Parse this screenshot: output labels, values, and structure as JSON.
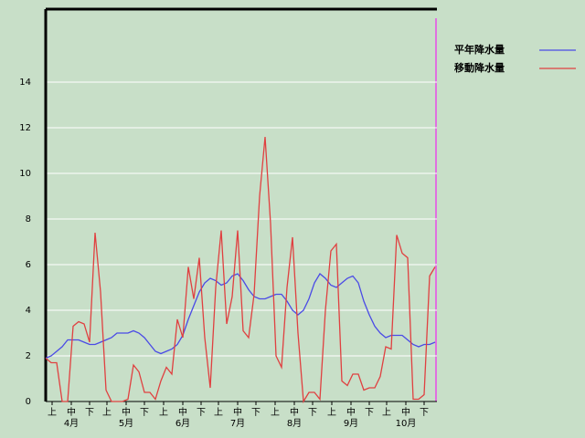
{
  "chart_data": {
    "type": "line",
    "x": [
      0,
      3,
      6,
      9,
      12,
      15,
      18,
      21,
      24,
      27,
      30,
      33,
      36,
      39,
      42,
      45,
      48,
      51,
      54,
      57,
      60,
      63,
      66,
      69,
      72,
      75,
      78,
      81,
      84,
      87,
      90,
      93,
      96,
      99,
      102,
      105,
      108,
      111,
      114,
      117,
      120,
      123,
      126,
      129,
      132,
      135,
      138,
      141,
      144,
      147,
      150,
      153,
      156,
      159,
      162,
      165,
      168,
      171,
      174,
      177,
      180,
      183,
      186,
      189,
      192,
      195,
      198,
      201,
      204,
      207,
      210,
      213
    ],
    "series": [
      {
        "name": "平年降水量",
        "color": "#4a4ae6",
        "values": [
          1.9,
          2.0,
          2.2,
          2.4,
          2.7,
          2.7,
          2.7,
          2.6,
          2.5,
          2.5,
          2.6,
          2.7,
          2.8,
          3.0,
          3.0,
          3.0,
          3.1,
          3.0,
          2.8,
          2.5,
          2.2,
          2.1,
          2.2,
          2.3,
          2.5,
          2.9,
          3.6,
          4.2,
          4.8,
          5.2,
          5.4,
          5.3,
          5.1,
          5.2,
          5.5,
          5.6,
          5.3,
          4.9,
          4.6,
          4.5,
          4.5,
          4.6,
          4.7,
          4.7,
          4.4,
          4.0,
          3.8,
          4.0,
          4.5,
          5.2,
          5.6,
          5.4,
          5.1,
          5.0,
          5.2,
          5.4,
          5.5,
          5.2,
          4.4,
          3.8,
          3.3,
          3.0,
          2.8,
          2.9,
          2.9,
          2.9,
          2.7,
          2.5,
          2.4,
          2.5,
          2.5,
          2.6
        ]
      },
      {
        "name": "移動降水量",
        "color": "#e04040",
        "values": [
          1.9,
          1.7,
          1.7,
          0,
          0,
          3.3,
          3.5,
          3.4,
          2.6,
          7.4,
          4.8,
          0.5,
          0,
          0,
          0,
          0.1,
          1.6,
          1.3,
          0.4,
          0.4,
          0.1,
          0.9,
          1.5,
          1.2,
          3.6,
          2.8,
          5.9,
          4.5,
          6.3,
          2.8,
          0.6,
          5.0,
          7.5,
          3.4,
          4.6,
          7.5,
          3.1,
          2.8,
          4.7,
          9.0,
          11.6,
          7.8,
          2.0,
          1.5,
          5.0,
          7.2,
          3.0,
          0,
          0.4,
          0.4,
          0.1,
          4.0,
          6.6,
          6.9,
          0.9,
          0.7,
          1.2,
          1.2,
          0.5,
          0.6,
          0.6,
          1.1,
          2.4,
          2.3,
          7.3,
          6.5,
          6.3,
          0.1,
          0.1,
          0.3,
          5.5,
          5.9
        ]
      }
    ],
    "xlim": [
      0,
      214
    ],
    "xticks": [
      {
        "value": 3.5,
        "label": "上"
      },
      {
        "value": 14,
        "label": "中"
      },
      {
        "value": 24,
        "label": "下"
      },
      {
        "value": 33.5,
        "label": "上"
      },
      {
        "value": 44,
        "label": "中"
      },
      {
        "value": 54,
        "label": "下"
      },
      {
        "value": 64.5,
        "label": "上"
      },
      {
        "value": 75,
        "label": "中"
      },
      {
        "value": 85,
        "label": "下"
      },
      {
        "value": 94.5,
        "label": "上"
      },
      {
        "value": 105,
        "label": "中"
      },
      {
        "value": 115,
        "label": "下"
      },
      {
        "value": 125.5,
        "label": "上"
      },
      {
        "value": 136,
        "label": "中"
      },
      {
        "value": 146,
        "label": "下"
      },
      {
        "value": 156.5,
        "label": "上"
      },
      {
        "value": 167,
        "label": "中"
      },
      {
        "value": 177,
        "label": "下"
      },
      {
        "value": 186.5,
        "label": "上"
      },
      {
        "value": 197,
        "label": "中"
      },
      {
        "value": 207,
        "label": "下"
      }
    ],
    "month_labels": [
      {
        "value": 14,
        "label": "4月"
      },
      {
        "value": 44,
        "label": "5月"
      },
      {
        "value": 75,
        "label": "6月"
      },
      {
        "value": 105,
        "label": "7月"
      },
      {
        "value": 136,
        "label": "8月"
      },
      {
        "value": 167,
        "label": "9月"
      },
      {
        "value": 197,
        "label": "10月"
      }
    ],
    "ylim": [
      0,
      17.2
    ],
    "yticks": [
      0,
      2,
      4,
      6,
      8,
      10,
      12,
      14
    ],
    "grid": true
  }
}
